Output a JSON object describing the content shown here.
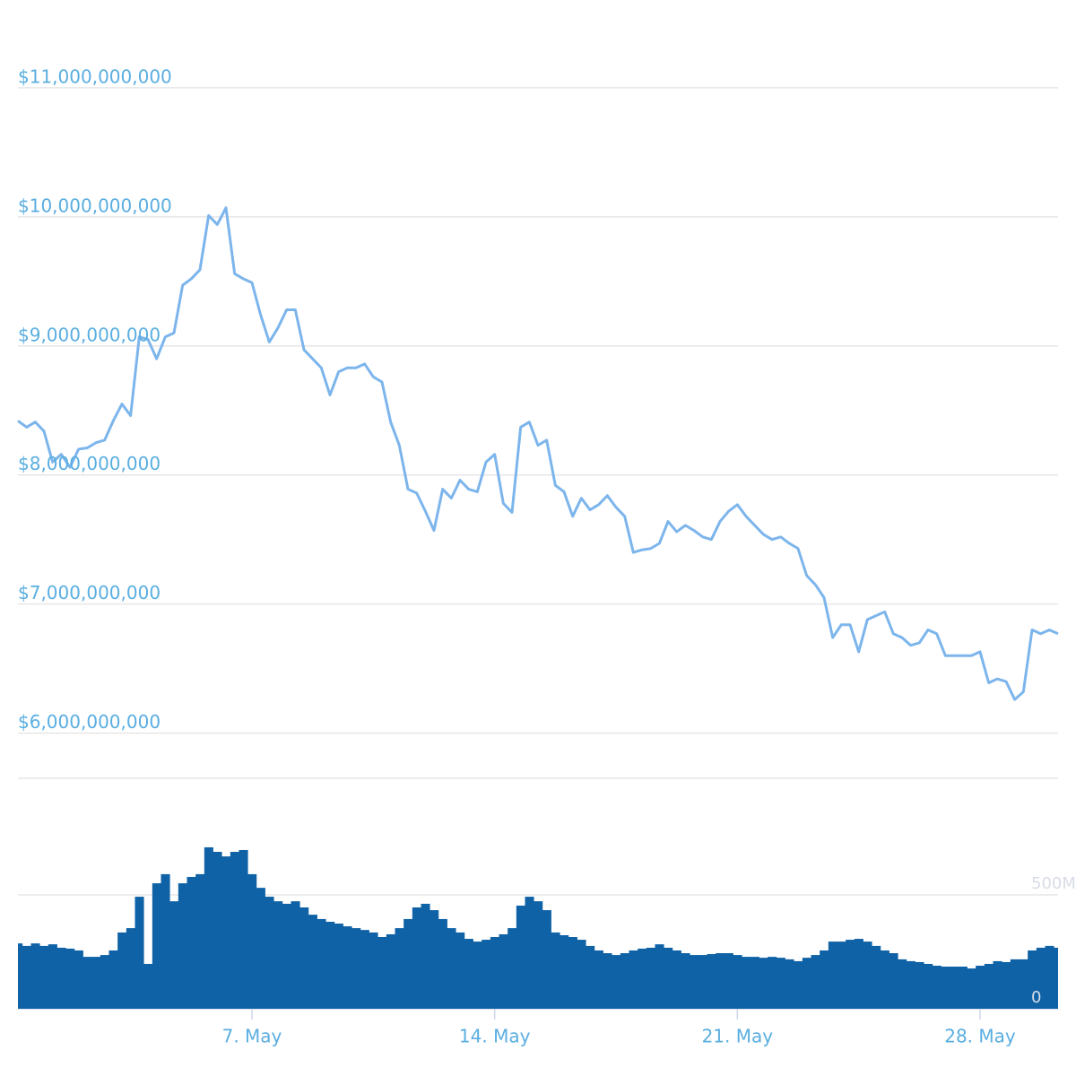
{
  "chart_data": {
    "type": "line",
    "categories": [
      null,
      null,
      null,
      null,
      null,
      null,
      null,
      null,
      null,
      null,
      null,
      null,
      null,
      null,
      null,
      null,
      null,
      null,
      null,
      null,
      null,
      null,
      null,
      null,
      null,
      null,
      null,
      "7. May",
      null,
      null,
      null,
      null,
      null,
      null,
      null,
      null,
      null,
      null,
      null,
      null,
      null,
      null,
      null,
      null,
      null,
      null,
      null,
      null,
      null,
      null,
      null,
      null,
      null,
      null,
      null,
      "14. May",
      null,
      null,
      null,
      null,
      null,
      null,
      null,
      null,
      null,
      null,
      null,
      null,
      null,
      null,
      null,
      null,
      null,
      null,
      null,
      null,
      null,
      null,
      null,
      null,
      null,
      null,
      null,
      "21. May",
      null,
      null,
      null,
      null,
      null,
      null,
      null,
      null,
      null,
      null,
      null,
      null,
      null,
      null,
      null,
      null,
      null,
      null,
      null,
      null,
      null,
      null,
      null,
      null,
      null,
      null,
      null,
      "28. May",
      null,
      null,
      null,
      null,
      null,
      null,
      null,
      null,
      null
    ],
    "series": [
      {
        "color": "#7cb5ec",
        "values": [
          8420000000,
          8370000000,
          8410000000,
          8340000000,
          8100000000,
          8160000000,
          8060000000,
          8200000000,
          8210000000,
          8250000000,
          8270000000,
          8420000000,
          8550000000,
          8460000000,
          9070000000,
          9050000000,
          8900000000,
          9070000000,
          9100000000,
          9470000000,
          9520000000,
          9590000000,
          10010000000,
          9940000000,
          10070000000,
          9560000000,
          9520000000,
          9490000000,
          9240000000,
          9030000000,
          9140000000,
          9280000000,
          9280000000,
          8970000000,
          8900000000,
          8830000000,
          8620000000,
          8800000000,
          8830000000,
          8830000000,
          8860000000,
          8760000000,
          8720000000,
          8410000000,
          8230000000,
          7890000000,
          7860000000,
          7720000000,
          7570000000,
          7890000000,
          7820000000,
          7960000000,
          7890000000,
          7870000000,
          8100000000,
          8160000000,
          7780000000,
          7710000000,
          8370000000,
          8410000000,
          8230000000,
          8270000000,
          7920000000,
          7870000000,
          7680000000,
          7820000000,
          7730000000,
          7770000000,
          7840000000,
          7750000000,
          7680000000,
          7400000000,
          7420000000,
          7430000000,
          7470000000,
          7640000000,
          7560000000,
          7610000000,
          7570000000,
          7520000000,
          7500000000,
          7640000000,
          7720000000,
          7770000000,
          7680000000,
          7610000000,
          7540000000,
          7500000000,
          7520000000,
          7470000000,
          7430000000,
          7220000000,
          7150000000,
          7050000000,
          6740000000,
          6840000000,
          6840000000,
          6630000000,
          6880000000,
          6910000000,
          6940000000,
          6770000000,
          6740000000,
          6680000000,
          6700000000,
          6800000000,
          6770000000,
          6600000000,
          6600000000,
          6600000000,
          6600000000,
          6630000000,
          6390000000,
          6420000000,
          6400000000,
          6260000000,
          6320000000,
          6800000000,
          6770000000,
          6800000000,
          6770000000
        ]
      },
      {
        "color": "#0f62a6",
        "axis": "y2",
        "values": [
          287000000,
          276000000,
          287000000,
          276000000,
          283000000,
          268000000,
          264000000,
          256000000,
          228000000,
          228000000,
          236000000,
          256000000,
          335000000,
          354000000,
          492000000,
          197000000,
          551000000,
          591000000,
          472000000,
          551000000,
          579000000,
          591000000,
          709000000,
          689000000,
          669000000,
          689000000,
          697000000,
          591000000,
          531000000,
          492000000,
          472000000,
          461000000,
          472000000,
          445000000,
          413000000,
          394000000,
          382000000,
          374000000,
          362000000,
          354000000,
          346000000,
          335000000,
          315000000,
          327000000,
          354000000,
          394000000,
          445000000,
          461000000,
          433000000,
          394000000,
          354000000,
          335000000,
          307000000,
          295000000,
          303000000,
          315000000,
          327000000,
          354000000,
          453000000,
          492000000,
          472000000,
          433000000,
          335000000,
          323000000,
          315000000,
          303000000,
          276000000,
          256000000,
          244000000,
          236000000,
          244000000,
          256000000,
          264000000,
          268000000,
          283000000,
          268000000,
          256000000,
          244000000,
          236000000,
          236000000,
          240000000,
          244000000,
          244000000,
          236000000,
          228000000,
          228000000,
          224000000,
          228000000,
          224000000,
          217000000,
          209000000,
          224000000,
          236000000,
          256000000,
          295000000,
          295000000,
          303000000,
          307000000,
          295000000,
          276000000,
          256000000,
          244000000,
          217000000,
          209000000,
          205000000,
          197000000,
          189000000,
          185000000,
          185000000,
          185000000,
          177000000,
          189000000,
          197000000,
          209000000,
          205000000,
          217000000,
          217000000,
          256000000,
          268000000,
          276000000,
          268000000
        ]
      }
    ],
    "ylim": [
      5650000000,
      11680000000
    ],
    "yticks": [
      {
        "value": 6000000000,
        "label": "$6,000,000,000"
      },
      {
        "value": 7000000000,
        "label": "$7,000,000,000"
      },
      {
        "value": 8000000000,
        "label": "$8,000,000,000"
      },
      {
        "value": 9000000000,
        "label": "$9,000,000,000"
      },
      {
        "value": 10000000000,
        "label": "$10,000,000,000"
      },
      {
        "value": 11000000000,
        "label": "$11,000,000,000"
      }
    ],
    "y2lim": [
      0,
      1012000000
    ],
    "y2ticks": [
      0,
      {
        "value": 500000000,
        "label": "500M"
      }
    ],
    "grid": true
  }
}
